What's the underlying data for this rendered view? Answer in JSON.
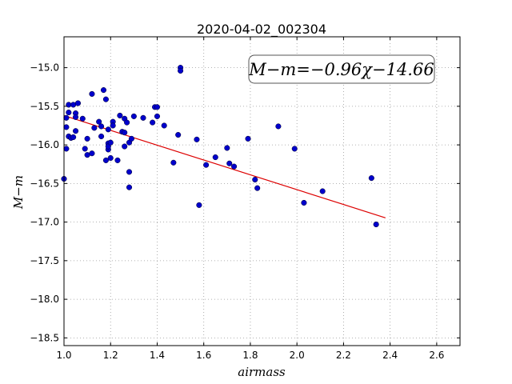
{
  "chart_data": {
    "type": "scatter",
    "title": "2020-04-02_002304",
    "xlabel": "airmass",
    "ylabel": "M−m",
    "xlim": [
      1.0,
      2.7
    ],
    "ylim": [
      -18.6,
      -14.6
    ],
    "y_inverted": true,
    "grid": true,
    "x_ticks": [
      "1.0",
      "1.2",
      "1.4",
      "1.6",
      "1.8",
      "2.0",
      "2.2",
      "2.4",
      "2.6"
    ],
    "y_ticks": [
      "−15.0",
      "−15.5",
      "−16.0",
      "−16.5",
      "−17.0",
      "−17.5",
      "−18.0",
      "−18.5"
    ],
    "annotation": "M−m=−0.96χ−14.66",
    "point_color": "#0000cc",
    "fit_color": "#dd0000",
    "fit": {
      "slope": -0.96,
      "intercept": -14.66,
      "x_range": [
        1.0,
        2.38
      ]
    },
    "points": [
      [
        1.0,
        -16.44
      ],
      [
        1.01,
        -15.77
      ],
      [
        1.01,
        -16.05
      ],
      [
        1.01,
        -15.65
      ],
      [
        1.02,
        -15.48
      ],
      [
        1.02,
        -15.89
      ],
      [
        1.02,
        -15.58
      ],
      [
        1.03,
        -15.91
      ],
      [
        1.04,
        -15.48
      ],
      [
        1.04,
        -15.9
      ],
      [
        1.05,
        -15.59
      ],
      [
        1.05,
        -15.64
      ],
      [
        1.05,
        -15.82
      ],
      [
        1.06,
        -15.46
      ],
      [
        1.08,
        -15.66
      ],
      [
        1.09,
        -16.05
      ],
      [
        1.1,
        -16.13
      ],
      [
        1.1,
        -15.92
      ],
      [
        1.12,
        -15.34
      ],
      [
        1.12,
        -16.11
      ],
      [
        1.13,
        -15.78
      ],
      [
        1.15,
        -15.7
      ],
      [
        1.16,
        -15.76
      ],
      [
        1.16,
        -15.89
      ],
      [
        1.17,
        -15.29
      ],
      [
        1.18,
        -16.2
      ],
      [
        1.18,
        -15.41
      ],
      [
        1.19,
        -15.98
      ],
      [
        1.19,
        -16.06
      ],
      [
        1.19,
        -15.8
      ],
      [
        1.19,
        -16.02
      ],
      [
        1.2,
        -16.17
      ],
      [
        1.2,
        -15.97
      ],
      [
        1.21,
        -15.7
      ],
      [
        1.21,
        -15.75
      ],
      [
        1.23,
        -16.2
      ],
      [
        1.24,
        -15.62
      ],
      [
        1.25,
        -15.83
      ],
      [
        1.26,
        -15.66
      ],
      [
        1.26,
        -15.84
      ],
      [
        1.26,
        -16.02
      ],
      [
        1.27,
        -15.71
      ],
      [
        1.28,
        -16.35
      ],
      [
        1.28,
        -16.55
      ],
      [
        1.28,
        -15.97
      ],
      [
        1.29,
        -15.92
      ],
      [
        1.3,
        -15.63
      ],
      [
        1.34,
        -15.65
      ],
      [
        1.38,
        -15.71
      ],
      [
        1.39,
        -15.51
      ],
      [
        1.4,
        -15.51
      ],
      [
        1.4,
        -15.63
      ],
      [
        1.43,
        -15.75
      ],
      [
        1.47,
        -16.23
      ],
      [
        1.49,
        -15.87
      ],
      [
        1.5,
        -15.0
      ],
      [
        1.5,
        -15.04
      ],
      [
        1.57,
        -15.93
      ],
      [
        1.58,
        -16.78
      ],
      [
        1.61,
        -16.26
      ],
      [
        1.65,
        -16.16
      ],
      [
        1.7,
        -16.04
      ],
      [
        1.71,
        -16.24
      ],
      [
        1.73,
        -16.28
      ],
      [
        1.79,
        -15.92
      ],
      [
        1.82,
        -16.45
      ],
      [
        1.83,
        -16.56
      ],
      [
        1.92,
        -15.76
      ],
      [
        1.99,
        -16.05
      ],
      [
        2.03,
        -16.75
      ],
      [
        2.11,
        -16.6
      ],
      [
        2.32,
        -16.43
      ],
      [
        2.34,
        -17.03
      ]
    ]
  }
}
